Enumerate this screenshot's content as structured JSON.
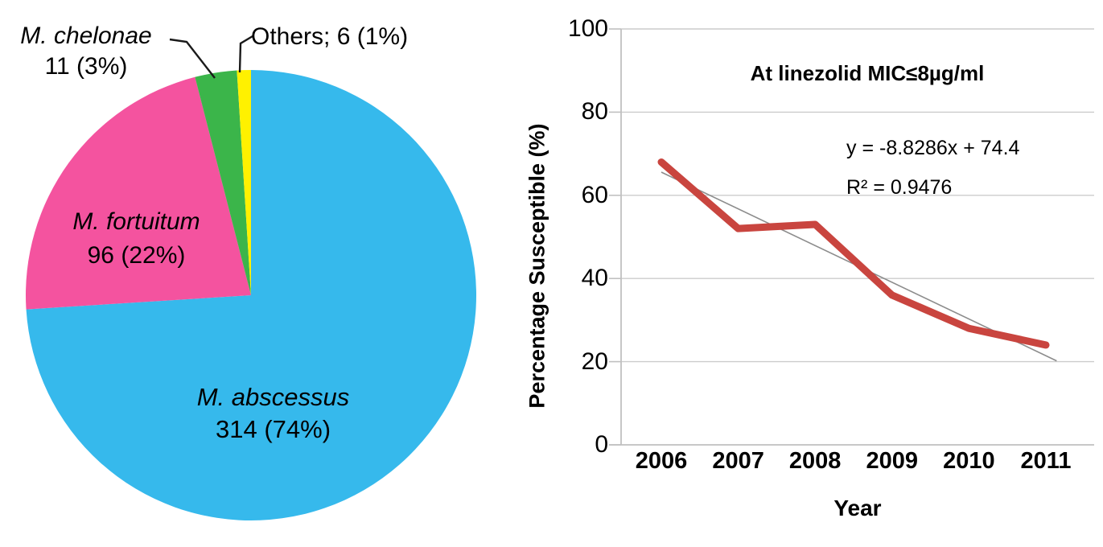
{
  "figure": {
    "background": "#ffffff"
  },
  "chart_data": [
    {
      "type": "pie",
      "title": "",
      "start_angle_deg": 0,
      "direction": "clockwise",
      "slices": [
        {
          "name": "M. abscessus",
          "count": 314,
          "percent": 74,
          "color": "#36B9EC",
          "label_name": "M. abscessus",
          "label_value": "314 (74%)"
        },
        {
          "name": "M. fortuitum",
          "count": 96,
          "percent": 22,
          "color": "#F4539F",
          "label_name": "M. fortuitum",
          "label_value": "96 (22%)"
        },
        {
          "name": "M. chelonae",
          "count": 11,
          "percent": 3,
          "color": "#3BB54A",
          "label_name": "M. chelonae",
          "label_value": "11 (3%)"
        },
        {
          "name": "Others",
          "count": 6,
          "percent": 1,
          "color": "#FFF100",
          "label": "Others; 6 (1%)"
        }
      ],
      "leader_line_color": "#1a1a1a"
    },
    {
      "type": "line",
      "title": "At linezolid MIC≤8µg/ml",
      "xlabel": "Year",
      "ylabel": "Percentage Susceptible (%)",
      "x": [
        2006,
        2007,
        2008,
        2009,
        2010,
        2011
      ],
      "values": [
        68,
        52,
        53,
        36,
        28,
        24
      ],
      "ylim": [
        0,
        100
      ],
      "yticks": [
        0,
        20,
        40,
        60,
        80,
        100
      ],
      "grid": true,
      "legend_position": "none",
      "line_color": "#C9453F",
      "axis_color": "#c0c0c0",
      "grid_color": "#cccccc",
      "trendline": {
        "equation": "y = -8.8286x + 74.4",
        "r_squared_label": "R² = 0.9476",
        "slope": -8.8286,
        "intercept": 74.4,
        "color": "#8c8c8c"
      }
    }
  ]
}
